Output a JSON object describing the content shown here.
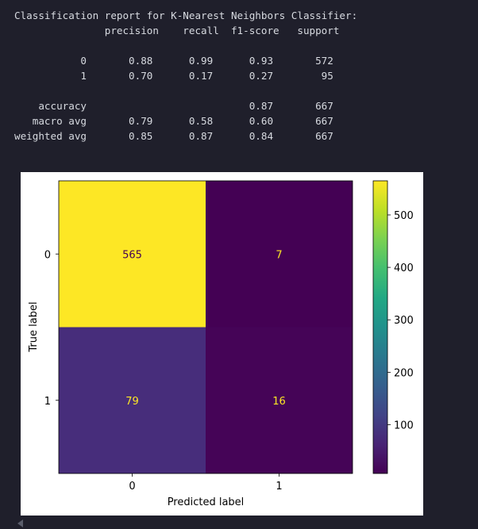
{
  "report": {
    "lines": [
      "Classification report for K-Nearest Neighbors Classifier:",
      "               precision    recall  f1-score   support",
      "",
      "           0       0.88      0.99      0.93       572",
      "           1       0.70      0.17      0.27        95",
      "",
      "    accuracy                           0.87       667",
      "   macro avg       0.79      0.58      0.60       667",
      "weighted avg       0.85      0.87      0.84       667"
    ]
  },
  "chart_data": {
    "type": "heatmap",
    "title": "",
    "xlabel": "Predicted label",
    "ylabel": "True label",
    "x_categories": [
      "0",
      "1"
    ],
    "y_categories": [
      "0",
      "1"
    ],
    "values": [
      [
        565,
        7
      ],
      [
        79,
        16
      ]
    ],
    "colormap": "viridis",
    "colors": {
      "cell_0_0": "#fde725",
      "cell_0_1": "#440154",
      "cell_1_0": "#472d7b",
      "cell_1_1": "#450457",
      "text_on_dark": "#fde725",
      "text_on_light": "#440154"
    },
    "colorbar": {
      "range": [
        7,
        565
      ],
      "ticks": [
        "100",
        "200",
        "300",
        "400",
        "500"
      ],
      "tick_values": [
        100,
        200,
        300,
        400,
        500
      ]
    }
  }
}
